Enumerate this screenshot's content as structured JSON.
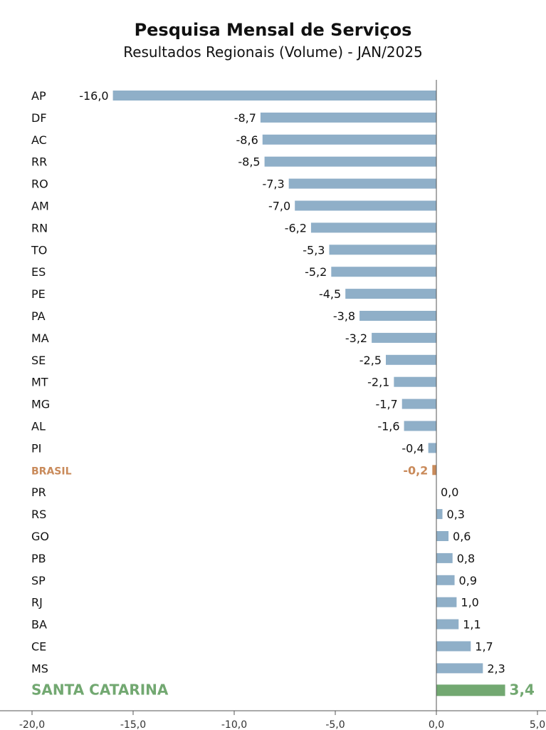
{
  "chart_data": {
    "type": "bar",
    "orientation": "horizontal",
    "title": "Pesquisa Mensal de Serviços",
    "subtitle": "Resultados Regionais (Volume) - JAN/2025",
    "categories": [
      "AP",
      "DF",
      "AC",
      "RR",
      "RO",
      "AM",
      "RN",
      "TO",
      "ES",
      "PE",
      "PA",
      "MA",
      "SE",
      "MT",
      "MG",
      "AL",
      "PI",
      "BRASIL",
      "PR",
      "RS",
      "GO",
      "PB",
      "SP",
      "RJ",
      "BA",
      "CE",
      "MS",
      "SANTA CATARINA"
    ],
    "values": [
      -16.0,
      -8.7,
      -8.6,
      -8.5,
      -7.3,
      -7.0,
      -6.2,
      -5.3,
      -5.2,
      -4.5,
      -3.8,
      -3.2,
      -2.5,
      -2.1,
      -1.7,
      -1.6,
      -0.4,
      -0.2,
      0.0,
      0.3,
      0.6,
      0.8,
      0.9,
      1.0,
      1.1,
      1.7,
      2.3,
      3.4
    ],
    "value_labels": [
      "-16,0",
      "-8,7",
      "-8,6",
      "-8,5",
      "-7,3",
      "-7,0",
      "-6,2",
      "-5,3",
      "-5,2",
      "-4,5",
      "-3,8",
      "-3,2",
      "-2,5",
      "-2,1",
      "-1,7",
      "-1,6",
      "-0,4",
      "-0,2",
      "0,0",
      "0,3",
      "0,6",
      "0,8",
      "0,9",
      "1,0",
      "1,1",
      "1,7",
      "2,3",
      "3,4"
    ],
    "highlights": {
      "BRASIL": "brasil",
      "SANTA CATARINA": "santa_catarina"
    },
    "xlim": [
      -20,
      5
    ],
    "xticks": [
      -20,
      -15,
      -10,
      -5,
      0,
      5
    ],
    "xtick_labels": [
      "-20,0",
      "-15,0",
      "-10,0",
      "-5,0",
      "0,0",
      "5,0"
    ],
    "grid": false,
    "colors": {
      "default_bar": "#8fafc8",
      "brasil": "#c98a5a",
      "santa_catarina": "#72a871",
      "axis": "#555555",
      "text": "#111111"
    }
  }
}
